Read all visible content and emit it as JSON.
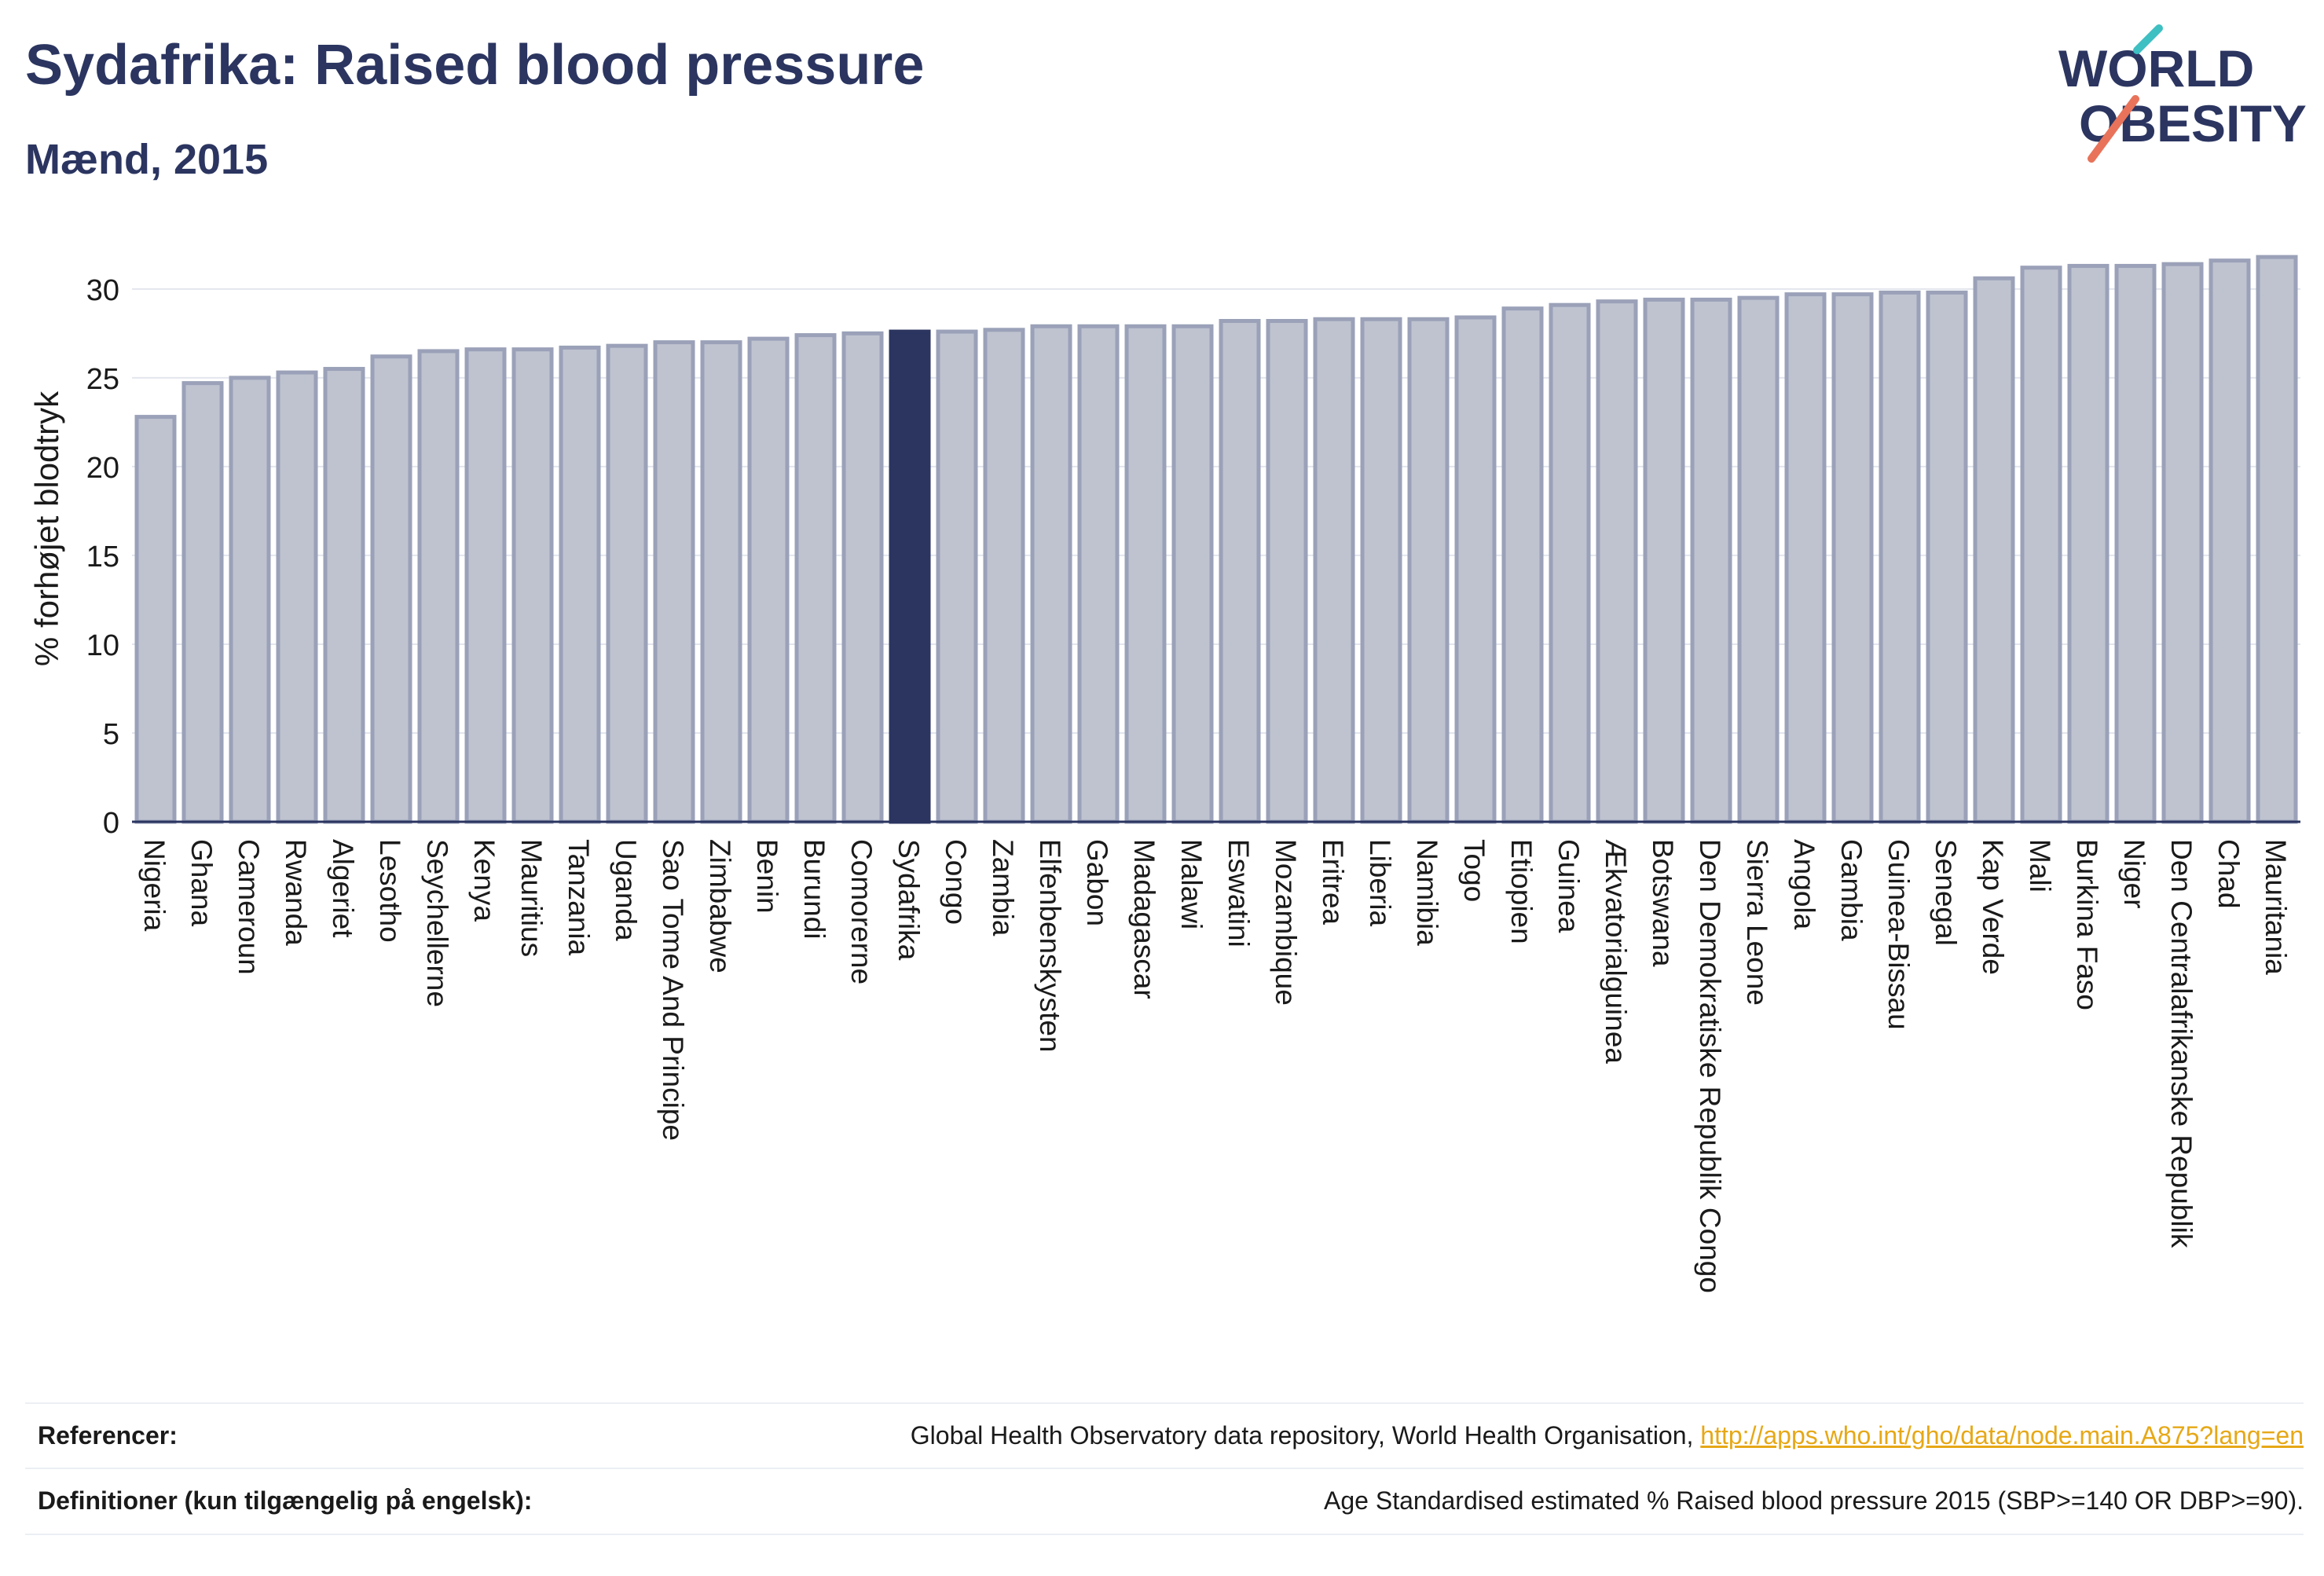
{
  "header": {
    "title": "Sydafrika: Raised blood pressure",
    "subtitle": "Mænd, 2015"
  },
  "logo": {
    "line1": "WORLD",
    "line2": "OBESITY",
    "accent_colors": [
      "#3ebfc2",
      "#e8735a"
    ]
  },
  "colors": {
    "bar": "#bfc3d0",
    "bar_border": "#9aa1b8",
    "highlight": "#2b3560",
    "text": "#2b3560",
    "link": "#e6a817"
  },
  "chart_data": {
    "type": "bar",
    "ylabel": "% forhøjet blodtryk",
    "ylim": [
      0,
      33
    ],
    "yticks": [
      0,
      5,
      10,
      15,
      20,
      25,
      30
    ],
    "grid": true,
    "highlight": "Sydafrika",
    "categories": [
      "Nigeria",
      "Ghana",
      "Cameroun",
      "Rwanda",
      "Algeriet",
      "Lesotho",
      "Seychellerne",
      "Kenya",
      "Mauritius",
      "Tanzania",
      "Uganda",
      "Sao Tome And Principe",
      "Zimbabwe",
      "Benin",
      "Burundi",
      "Comorerne",
      "Sydafrika",
      "Congo",
      "Zambia",
      "Elfenbenskysten",
      "Gabon",
      "Madagascar",
      "Malawi",
      "Eswatini",
      "Mozambique",
      "Eritrea",
      "Liberia",
      "Namibia",
      "Togo",
      "Etiopien",
      "Guinea",
      "Ækvatorialguinea",
      "Botswana",
      "Den Demokratiske Republik Congo",
      "Sierra Leone",
      "Angola",
      "Gambia",
      "Guinea-Bissau",
      "Senegal",
      "Kap Verde",
      "Mali",
      "Burkina Faso",
      "Niger",
      "Den Centralafrikanske Republik",
      "Chad",
      "Mauritania"
    ],
    "values": [
      22.8,
      24.7,
      25.0,
      25.3,
      25.5,
      26.2,
      26.5,
      26.6,
      26.6,
      26.7,
      26.8,
      27.0,
      27.0,
      27.2,
      27.4,
      27.5,
      27.6,
      27.6,
      27.7,
      27.9,
      27.9,
      27.9,
      27.9,
      28.2,
      28.2,
      28.3,
      28.3,
      28.3,
      28.4,
      28.9,
      29.1,
      29.3,
      29.4,
      29.4,
      29.5,
      29.7,
      29.7,
      29.8,
      29.8,
      30.6,
      31.2,
      31.3,
      31.3,
      31.4,
      31.6,
      31.8
    ]
  },
  "footer": {
    "ref_label": "Referencer:",
    "ref_text": "Global Health Observatory data repository, World Health Organisation, ",
    "ref_link": "http://apps.who.int/gho/data/node.main.A875?lang=en",
    "def_label": "Definitioner (kun tilgængelig på engelsk):",
    "def_text": "Age Standardised estimated % Raised blood pressure 2015 (SBP>=140 OR DBP>=90)."
  }
}
